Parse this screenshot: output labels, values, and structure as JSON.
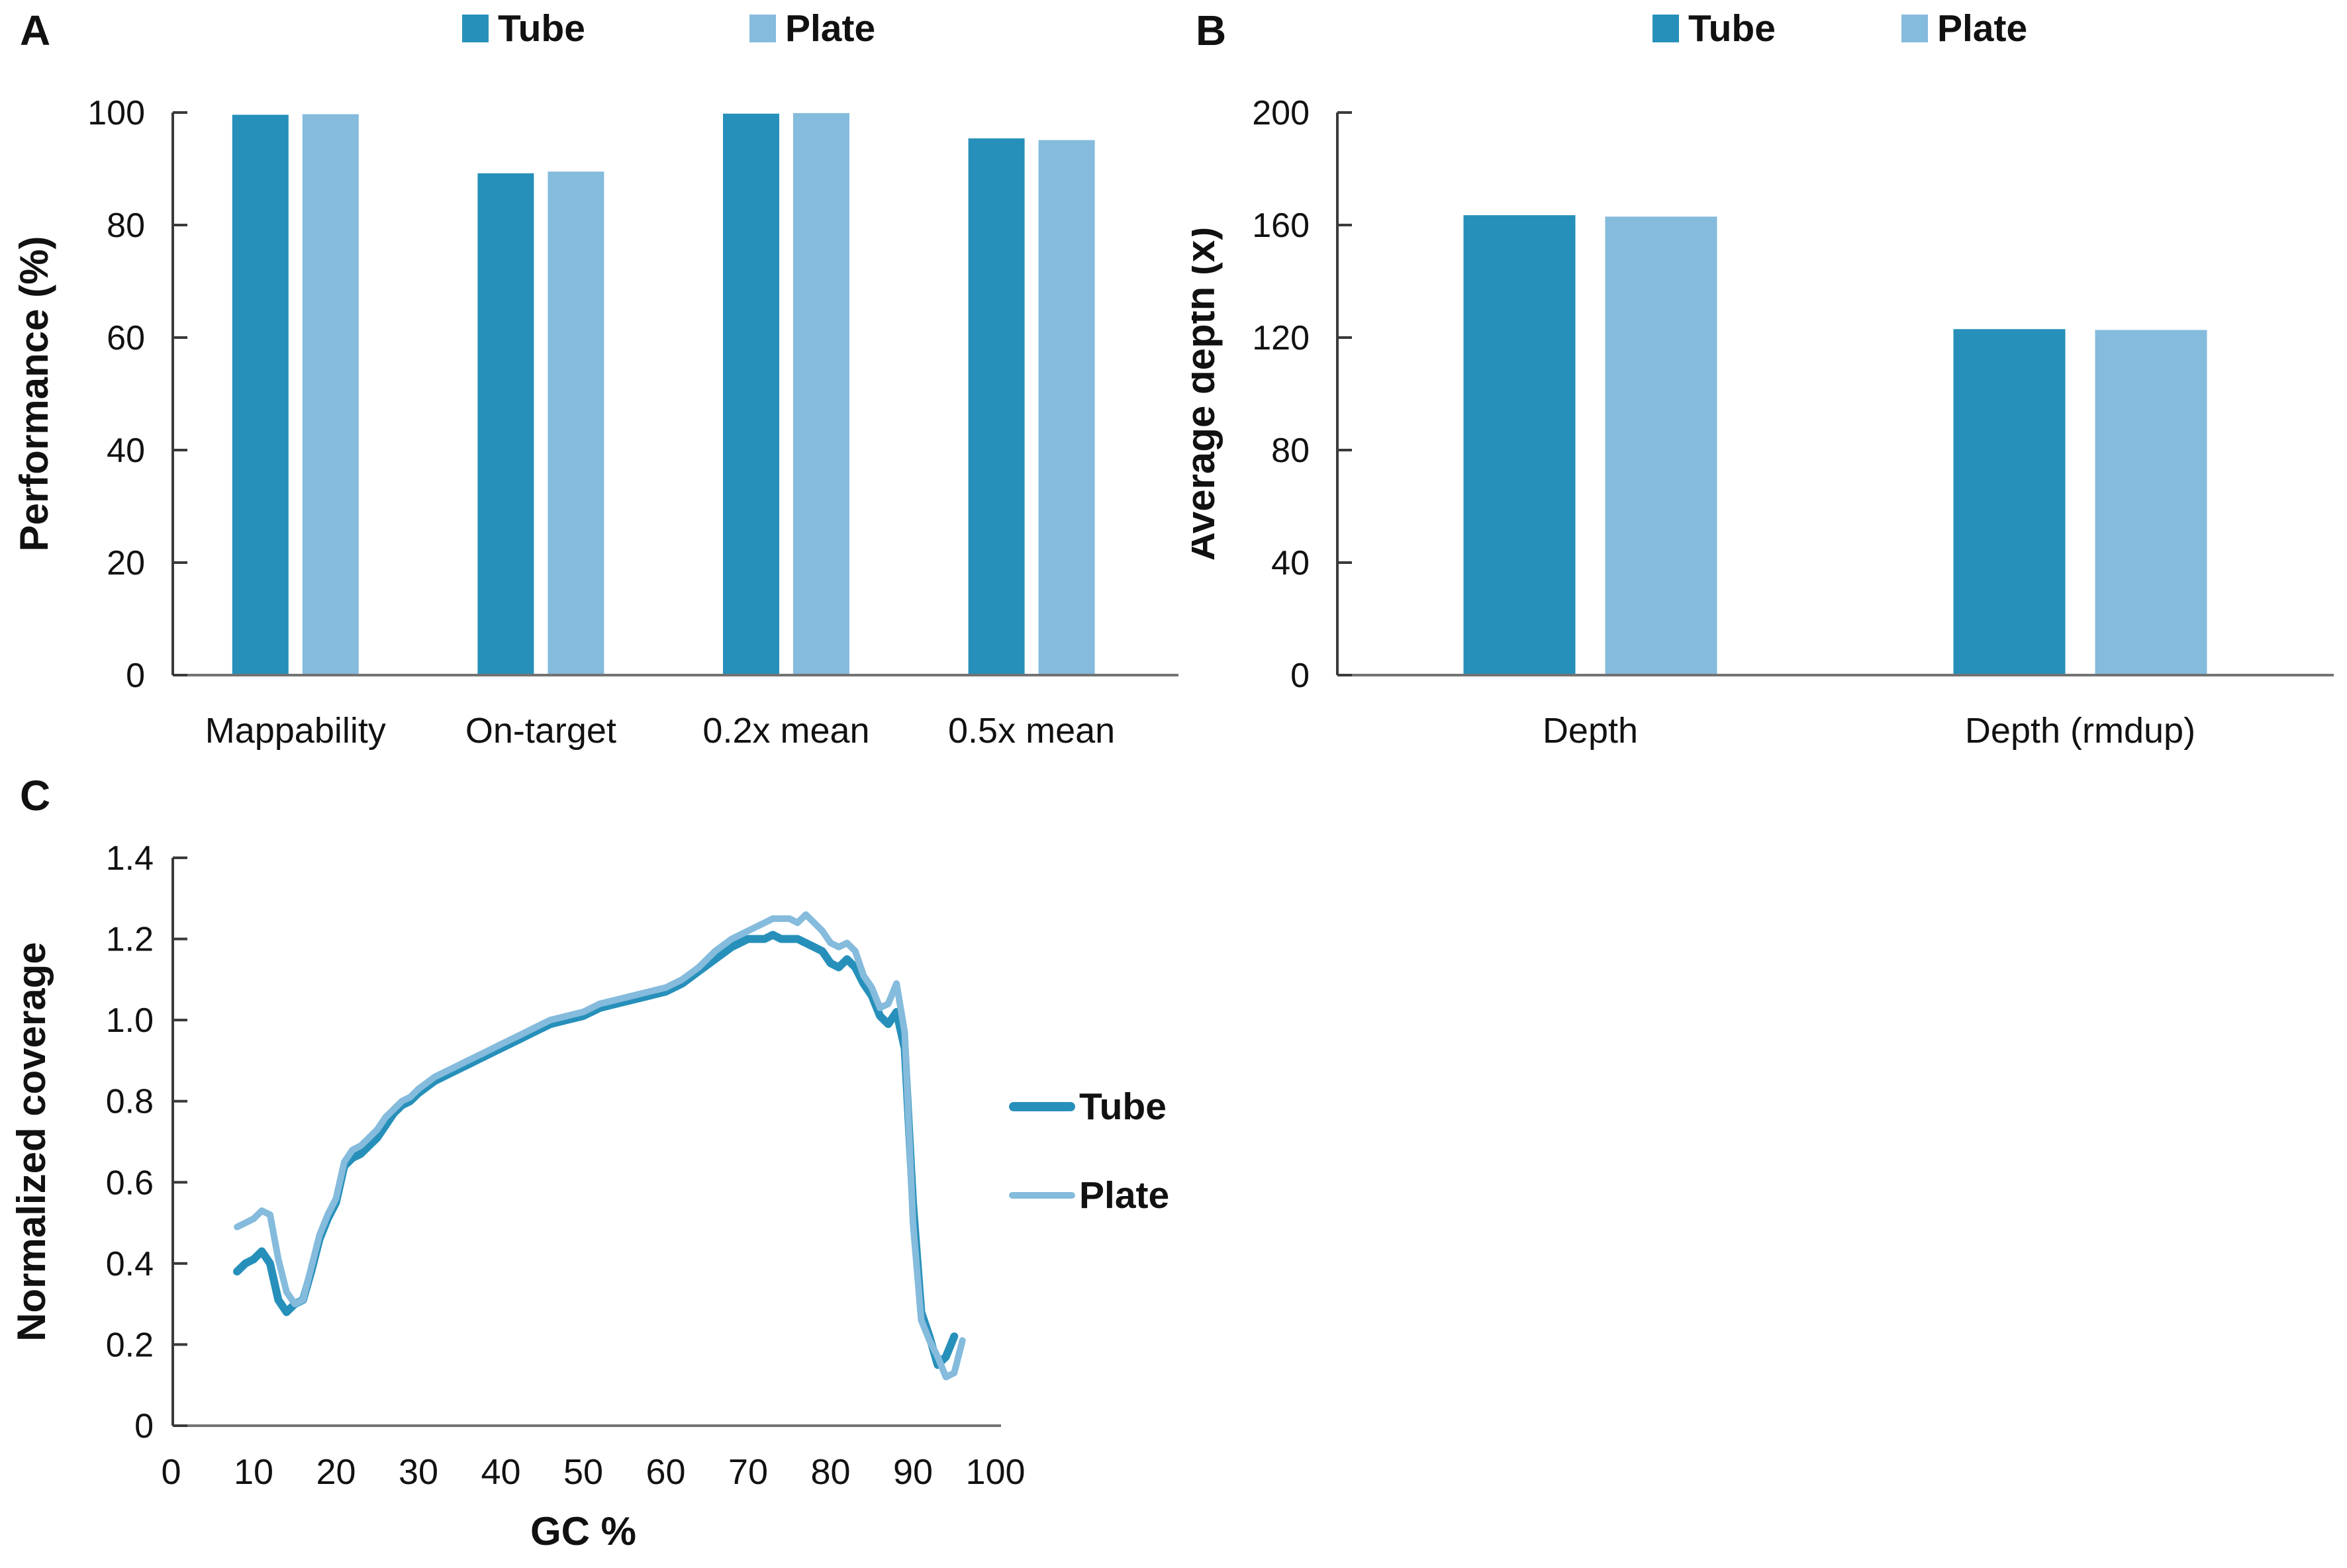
{
  "figure": {
    "colors": {
      "tube": "#2690BA",
      "plate": "#85BBDC",
      "axis_y": "#3A3A3A",
      "axis_x": "#737373",
      "text": "#111111"
    },
    "legend": {
      "tube_label": "Tube",
      "plate_label": "Plate"
    }
  },
  "panels": {
    "a": {
      "letter": "A"
    },
    "b": {
      "letter": "B"
    },
    "c": {
      "letter": "C"
    }
  },
  "chart_data": [
    {
      "id": "panel-a",
      "type": "bar",
      "ylabel": "Performance (%)",
      "xlabel": "",
      "ylim": [
        0,
        100
      ],
      "yticks": [
        0,
        20,
        40,
        60,
        80,
        100
      ],
      "categories": [
        "Mappability",
        "On-target",
        "0.2x mean",
        "0.5x mean"
      ],
      "series": [
        {
          "name": "Tube",
          "color_key": "tube",
          "values": [
            99.6,
            89.2,
            99.8,
            95.4
          ]
        },
        {
          "name": "Plate",
          "color_key": "plate",
          "values": [
            99.7,
            89.5,
            99.9,
            95.1
          ]
        }
      ],
      "legend_position": "top",
      "grid": false
    },
    {
      "id": "panel-b",
      "type": "bar",
      "ylabel": "Average depth (x)",
      "xlabel": "",
      "ylim": [
        0,
        200
      ],
      "yticks": [
        0,
        40,
        80,
        120,
        160,
        200
      ],
      "categories": [
        "Depth",
        "Depth (rmdup)"
      ],
      "series": [
        {
          "name": "Tube",
          "color_key": "tube",
          "values": [
            163.5,
            123.0
          ]
        },
        {
          "name": "Plate",
          "color_key": "plate",
          "values": [
            163.0,
            122.7
          ]
        }
      ],
      "legend_position": "top",
      "grid": false
    },
    {
      "id": "panel-c",
      "type": "line",
      "xlabel": "GC %",
      "ylabel": "Normalized coverage",
      "xlim": [
        0,
        100
      ],
      "ylim": [
        0,
        1.4
      ],
      "xticks": [
        "0",
        "10",
        "20",
        "30",
        "40",
        "50",
        "60",
        "70",
        "80",
        "90",
        "100"
      ],
      "yticks": [
        "0",
        "0.2",
        "0.4",
        "0.6",
        "0.8",
        "1.0",
        "1.2",
        "1.4"
      ],
      "legend_position": "right",
      "grid": false,
      "series": [
        {
          "name": "Tube",
          "color_key": "tube",
          "points": [
            [
              8,
              0.38
            ],
            [
              9,
              0.4
            ],
            [
              10,
              0.41
            ],
            [
              11,
              0.43
            ],
            [
              12,
              0.4
            ],
            [
              13,
              0.31
            ],
            [
              14,
              0.28
            ],
            [
              15,
              0.3
            ],
            [
              16,
              0.31
            ],
            [
              17,
              0.38
            ],
            [
              18,
              0.46
            ],
            [
              19,
              0.51
            ],
            [
              20,
              0.55
            ],
            [
              21,
              0.64
            ],
            [
              22,
              0.66
            ],
            [
              23,
              0.67
            ],
            [
              24,
              0.69
            ],
            [
              25,
              0.71
            ],
            [
              26,
              0.74
            ],
            [
              27,
              0.77
            ],
            [
              28,
              0.79
            ],
            [
              29,
              0.8
            ],
            [
              30,
              0.82
            ],
            [
              32,
              0.85
            ],
            [
              34,
              0.87
            ],
            [
              36,
              0.89
            ],
            [
              38,
              0.91
            ],
            [
              40,
              0.93
            ],
            [
              42,
              0.95
            ],
            [
              44,
              0.97
            ],
            [
              46,
              0.99
            ],
            [
              48,
              1.0
            ],
            [
              50,
              1.01
            ],
            [
              52,
              1.03
            ],
            [
              54,
              1.04
            ],
            [
              56,
              1.05
            ],
            [
              58,
              1.06
            ],
            [
              60,
              1.07
            ],
            [
              62,
              1.09
            ],
            [
              64,
              1.12
            ],
            [
              66,
              1.15
            ],
            [
              68,
              1.18
            ],
            [
              70,
              1.2
            ],
            [
              72,
              1.2
            ],
            [
              73,
              1.21
            ],
            [
              74,
              1.2
            ],
            [
              76,
              1.2
            ],
            [
              78,
              1.18
            ],
            [
              79,
              1.17
            ],
            [
              80,
              1.14
            ],
            [
              81,
              1.13
            ],
            [
              82,
              1.15
            ],
            [
              83,
              1.13
            ],
            [
              84,
              1.09
            ],
            [
              85,
              1.06
            ],
            [
              86,
              1.01
            ],
            [
              87,
              0.99
            ],
            [
              88,
              1.02
            ],
            [
              89,
              0.93
            ],
            [
              90,
              0.55
            ],
            [
              91,
              0.28
            ],
            [
              92,
              0.22
            ],
            [
              93,
              0.15
            ],
            [
              94,
              0.17
            ],
            [
              95,
              0.22
            ]
          ]
        },
        {
          "name": "Plate",
          "color_key": "plate",
          "points": [
            [
              8,
              0.49
            ],
            [
              9,
              0.5
            ],
            [
              10,
              0.51
            ],
            [
              11,
              0.53
            ],
            [
              12,
              0.52
            ],
            [
              13,
              0.41
            ],
            [
              14,
              0.33
            ],
            [
              15,
              0.3
            ],
            [
              16,
              0.31
            ],
            [
              17,
              0.39
            ],
            [
              18,
              0.47
            ],
            [
              19,
              0.52
            ],
            [
              20,
              0.56
            ],
            [
              21,
              0.65
            ],
            [
              22,
              0.68
            ],
            [
              23,
              0.69
            ],
            [
              24,
              0.71
            ],
            [
              25,
              0.73
            ],
            [
              26,
              0.76
            ],
            [
              27,
              0.78
            ],
            [
              28,
              0.8
            ],
            [
              29,
              0.81
            ],
            [
              30,
              0.83
            ],
            [
              32,
              0.86
            ],
            [
              34,
              0.88
            ],
            [
              36,
              0.9
            ],
            [
              38,
              0.92
            ],
            [
              40,
              0.94
            ],
            [
              42,
              0.96
            ],
            [
              44,
              0.98
            ],
            [
              46,
              1.0
            ],
            [
              48,
              1.01
            ],
            [
              50,
              1.02
            ],
            [
              52,
              1.04
            ],
            [
              54,
              1.05
            ],
            [
              56,
              1.06
            ],
            [
              58,
              1.07
            ],
            [
              60,
              1.08
            ],
            [
              62,
              1.1
            ],
            [
              64,
              1.13
            ],
            [
              66,
              1.17
            ],
            [
              68,
              1.2
            ],
            [
              70,
              1.22
            ],
            [
              72,
              1.24
            ],
            [
              73,
              1.25
            ],
            [
              74,
              1.25
            ],
            [
              75,
              1.25
            ],
            [
              76,
              1.24
            ],
            [
              77,
              1.26
            ],
            [
              78,
              1.24
            ],
            [
              79,
              1.22
            ],
            [
              80,
              1.19
            ],
            [
              81,
              1.18
            ],
            [
              82,
              1.19
            ],
            [
              83,
              1.17
            ],
            [
              84,
              1.11
            ],
            [
              85,
              1.08
            ],
            [
              86,
              1.03
            ],
            [
              87,
              1.04
            ],
            [
              88,
              1.09
            ],
            [
              89,
              0.97
            ],
            [
              90,
              0.5
            ],
            [
              91,
              0.26
            ],
            [
              92,
              0.21
            ],
            [
              93,
              0.17
            ],
            [
              94,
              0.12
            ],
            [
              95,
              0.13
            ],
            [
              96,
              0.21
            ]
          ]
        }
      ]
    }
  ]
}
